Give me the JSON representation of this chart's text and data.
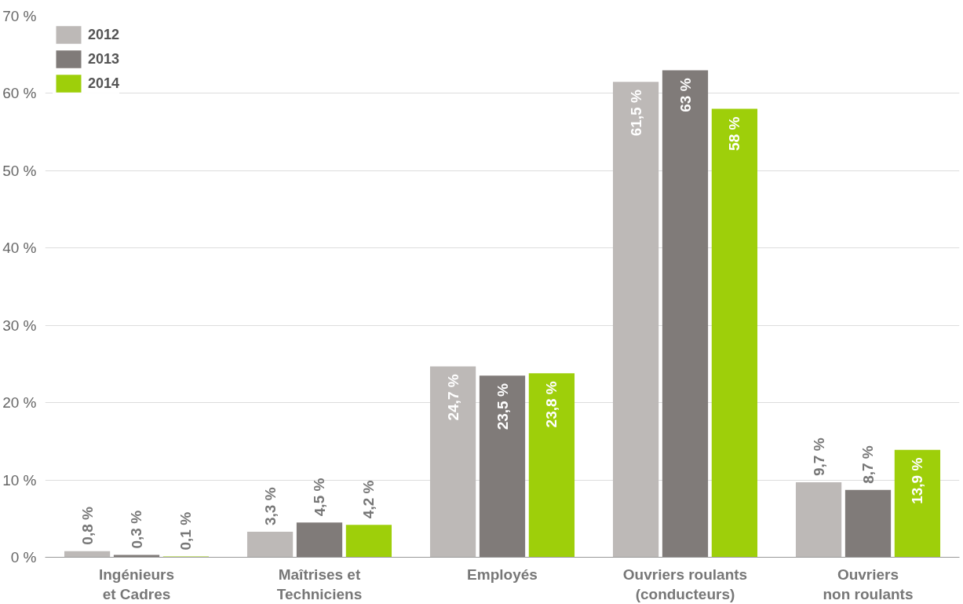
{
  "chart_data": {
    "type": "bar",
    "categories": [
      "Ingénieurs\net Cadres",
      "Maîtrises et\nTechniciens",
      "Employés",
      "Ouvriers roulants\n(conducteurs)",
      "Ouvriers\nnon roulants"
    ],
    "series": [
      {
        "name": "2012",
        "color": "#bdb9b7",
        "values": [
          0.8,
          3.3,
          24.7,
          61.5,
          9.7
        ],
        "value_labels": [
          "0,8 %",
          "3,3 %",
          "24,7 %",
          "61,5 %",
          "9,7 %"
        ]
      },
      {
        "name": "2013",
        "color": "#807b79",
        "values": [
          0.3,
          4.5,
          23.5,
          63,
          8.7
        ],
        "value_labels": [
          "0,3 %",
          "4,5 %",
          "23,5 %",
          "63 %",
          "8,7 %"
        ]
      },
      {
        "name": "2014",
        "color": "#9ecf0a",
        "values": [
          0.1,
          4.2,
          23.8,
          58,
          13.9
        ],
        "value_labels": [
          "0,1 %",
          "4,2 %",
          "23,8 %",
          "58 %",
          "13,9 %"
        ]
      }
    ],
    "ylim": [
      0,
      70
    ],
    "yticks": [
      {
        "value": 0,
        "label": "0 %"
      },
      {
        "value": 10,
        "label": "10 %"
      },
      {
        "value": 20,
        "label": "20 %"
      },
      {
        "value": 30,
        "label": "30 %"
      },
      {
        "value": 40,
        "label": "40 %"
      },
      {
        "value": 50,
        "label": "50 %"
      },
      {
        "value": 60,
        "label": "60 %"
      },
      {
        "value": 70,
        "label": "70 %"
      }
    ],
    "grid": "y",
    "legend": "top left"
  }
}
